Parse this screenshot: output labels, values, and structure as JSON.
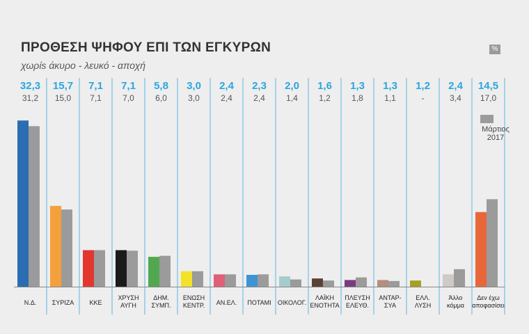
{
  "title": "ΠΡΟΘΕΣΗ ΨΗΦΟΥ ΕΠΙ ΤΩΝ ΕΓΚΥΡΩΝ",
  "subtitle": "χωρίs άκυρο - λευκό - αποχή",
  "unit_badge": "%",
  "chart_data": {
    "type": "bar",
    "categories": [
      [
        "Ν.Δ."
      ],
      [
        "ΣΥΡΙΖΑ"
      ],
      [
        "ΚΚΕ"
      ],
      [
        "ΧΡΥΣΗ",
        "ΑΥΓΗ"
      ],
      [
        "ΔΗΜ.",
        "ΣΥΜΠ."
      ],
      [
        "ΕΝΩΣΗ",
        "ΚΕΝΤΡ."
      ],
      [
        "ΑΝ.ΕΛ."
      ],
      [
        "ΠΟΤΑΜΙ"
      ],
      [
        "ΟΙΚΟΛΟΓ."
      ],
      [
        "ΛΑΪΚΗ",
        "ΕΝΟΤΗΤΑ"
      ],
      [
        "ΠΛΕΥΣΗ",
        "ΕΛΕΥΘ."
      ],
      [
        "ΑΝΤΑΡ-",
        "ΣΥΑ"
      ],
      [
        "ΕΛΛ.",
        "ΛΥΣΗ"
      ],
      [
        "Άλλο",
        "κόμμα"
      ],
      [
        "Δεν έχω",
        "αποφασίσει"
      ]
    ],
    "series": [
      {
        "values": [
          32.3,
          15.7,
          7.1,
          7.1,
          5.8,
          3.0,
          2.4,
          2.3,
          2.0,
          1.6,
          1.3,
          1.3,
          1.2,
          2.4,
          14.5
        ],
        "labels": [
          "32,3",
          "15,7",
          "7,1",
          "7,1",
          "5,8",
          "3,0",
          "2,4",
          "2,3",
          "2,0",
          "1,6",
          "1,3",
          "1,3",
          "1,2",
          "2,4",
          "14,5"
        ],
        "colors": [
          "#2a6db3",
          "#f4a03c",
          "#e2362f",
          "#1a1a1a",
          "#52a850",
          "#f2e22a",
          "#e0607a",
          "#3e94d3",
          "#a7cbcc",
          "#5c4236",
          "#7b3b82",
          "#b58e7c",
          "#a8a022",
          "#cfcac6",
          "#e8673a"
        ]
      },
      {
        "name": "Μάρτιος 2017",
        "values": [
          31.2,
          15.0,
          7.1,
          7.0,
          6.0,
          3.0,
          2.4,
          2.4,
          1.4,
          1.2,
          1.8,
          1.1,
          0,
          3.4,
          17.0
        ],
        "labels": [
          "31,2",
          "15,0",
          "7,1",
          "7,0",
          "6,0",
          "3,0",
          "2,4",
          "2,4",
          "1,4",
          "1,2",
          "1,8",
          "1,1",
          "-",
          "3,4",
          "17,0"
        ],
        "color": "#9b9b9b"
      }
    ],
    "legend": {
      "label_lines": [
        "Μάρτιος",
        "2017"
      ],
      "position": "right"
    },
    "ylim": [
      0,
      33
    ]
  }
}
